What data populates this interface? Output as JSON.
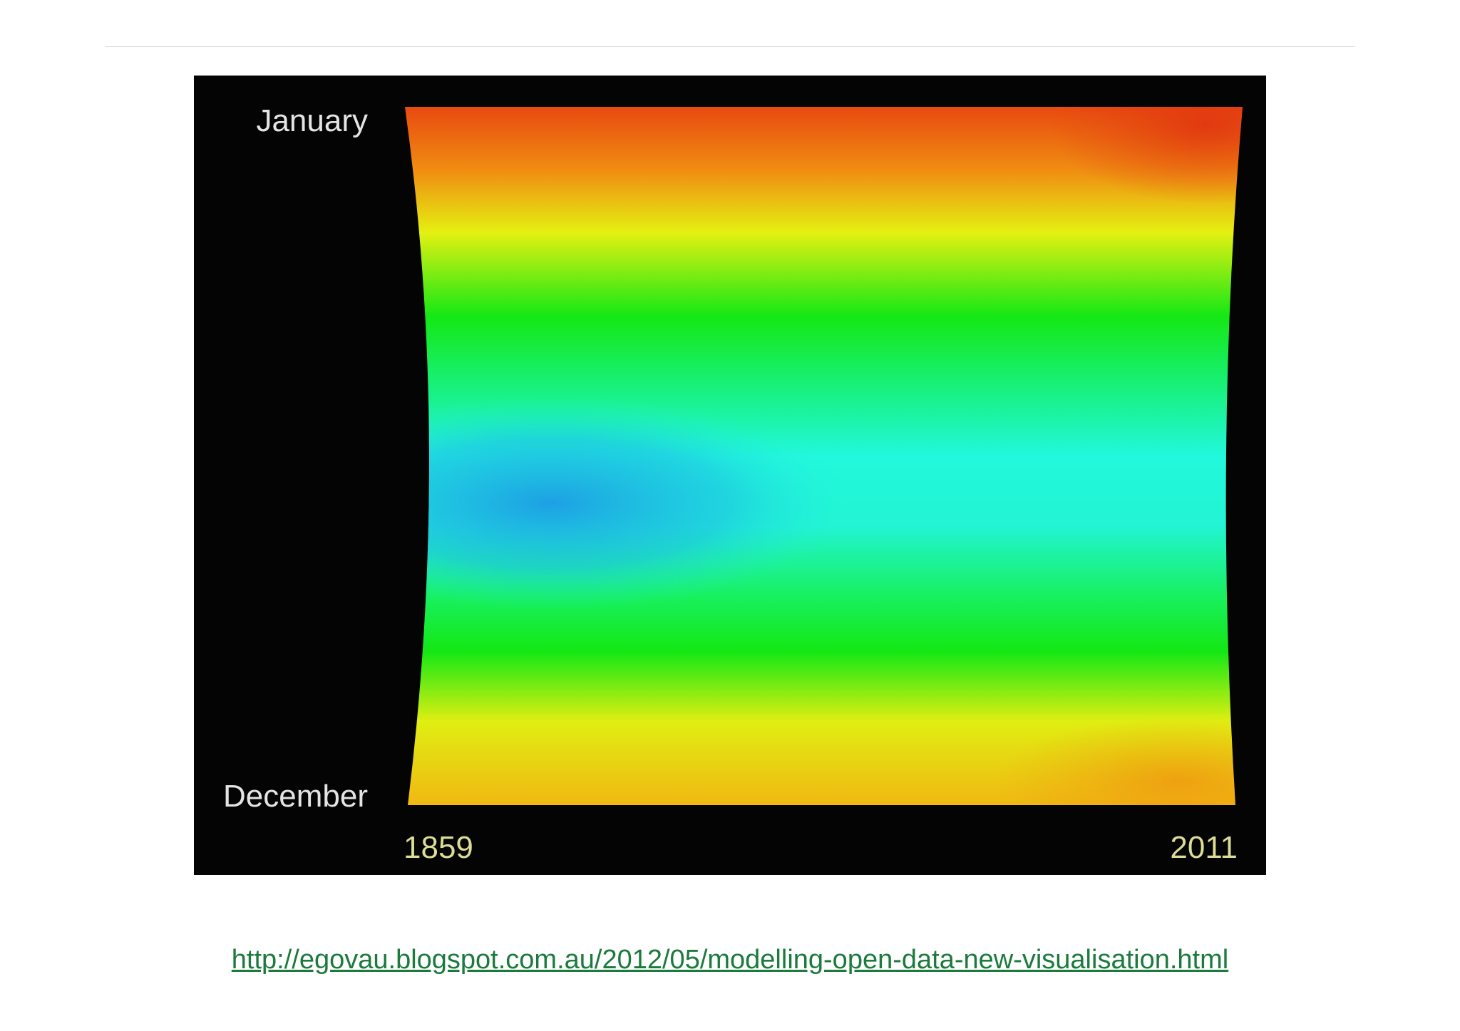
{
  "image": {
    "labels": {
      "top": "January",
      "bottom": "December",
      "start": "1859",
      "end": "2011"
    }
  },
  "link": {
    "text": "http://egovau.blogspot.com.au/2012/05/modelling-open-data-new-visualisation.html"
  }
}
